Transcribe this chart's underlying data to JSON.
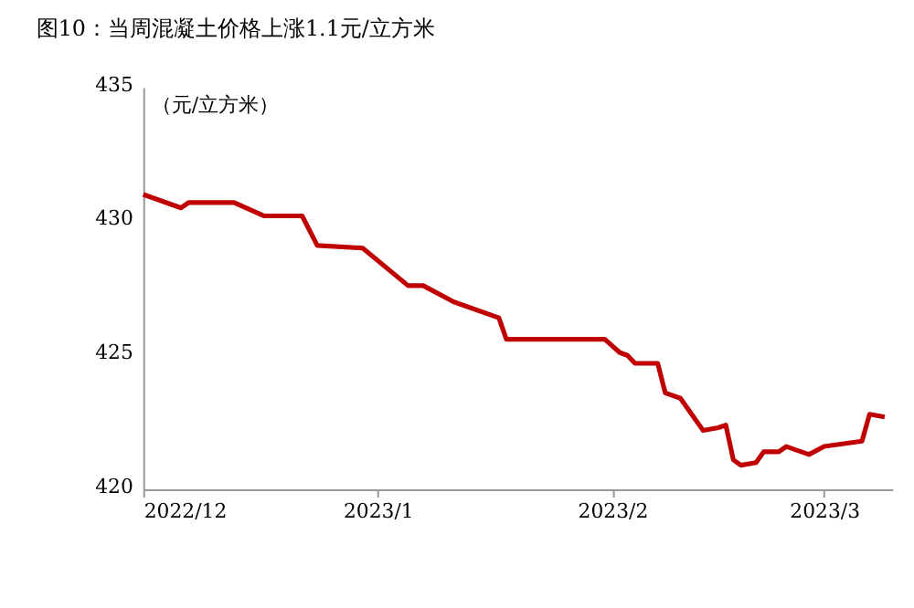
{
  "chart_data": {
    "type": "line",
    "title": "图10：当周混凝土价格上涨1.1元/立方米",
    "ylabel": "（元/立方米）",
    "x": [
      "2022-12-01",
      "2022-12-06",
      "2022-12-07",
      "2022-12-13",
      "2022-12-17",
      "2022-12-22",
      "2022-12-24",
      "2022-12-30",
      "2023-01-05",
      "2023-01-07",
      "2023-01-11",
      "2023-01-17",
      "2023-01-18",
      "2023-01-31",
      "2023-02-02",
      "2023-02-03",
      "2023-02-04",
      "2023-02-07",
      "2023-02-08",
      "2023-02-10",
      "2023-02-13",
      "2023-02-15",
      "2023-02-16",
      "2023-02-17",
      "2023-02-18",
      "2023-02-20",
      "2023-02-21",
      "2023-02-23",
      "2023-02-24",
      "2023-02-27",
      "2023-03-01",
      "2023-03-06",
      "2023-03-07",
      "2023-03-09"
    ],
    "series": [
      {
        "color": "#c00000",
        "values": [
          431.0,
          430.5,
          430.7,
          430.7,
          430.2,
          430.2,
          429.1,
          429.0,
          427.6,
          427.6,
          427.0,
          426.4,
          425.6,
          425.6,
          425.1,
          425.0,
          424.7,
          424.7,
          423.6,
          423.4,
          422.2,
          422.3,
          422.4,
          421.1,
          420.9,
          421.0,
          421.4,
          421.4,
          421.6,
          421.3,
          421.6,
          421.8,
          422.8,
          422.7
        ]
      }
    ],
    "xlim": [
      "2022-12-01",
      "2023-03-10"
    ],
    "xticks": [
      {
        "value": "2022-12-01",
        "label": "2022/12"
      },
      {
        "value": "2023-01-01",
        "label": "2023/1"
      },
      {
        "value": "2023-02-01",
        "label": "2023/2"
      },
      {
        "value": "2023-03-01",
        "label": "2023/3"
      }
    ],
    "ylim": [
      420,
      435
    ],
    "yticks": [
      420,
      425,
      430,
      435
    ],
    "grid": false,
    "legend": false,
    "marker": "none",
    "line_style": "solid"
  }
}
